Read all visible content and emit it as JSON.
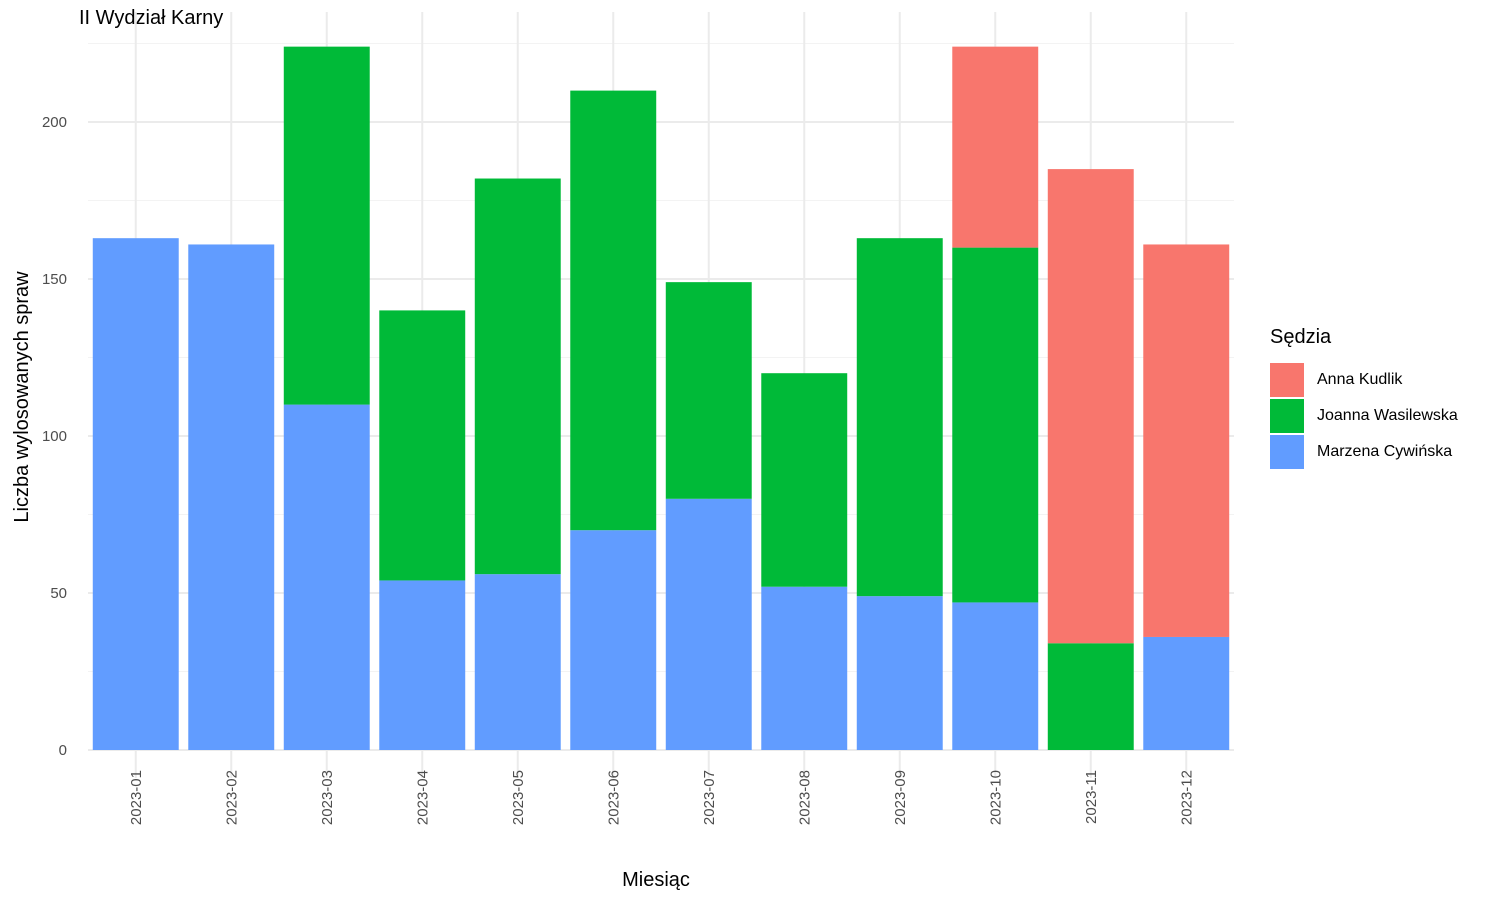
{
  "chart_data": {
    "type": "bar",
    "stacked": true,
    "title": "II Wydział Karny",
    "xlabel": "Miesiąc",
    "ylabel": "Liczba wylosowanych spraw",
    "categories": [
      "2023-01",
      "2023-02",
      "2023-03",
      "2023-04",
      "2023-05",
      "2023-06",
      "2023-07",
      "2023-08",
      "2023-09",
      "2023-10",
      "2023-11",
      "2023-12"
    ],
    "ylim": [
      0,
      225
    ],
    "yticks": [
      0,
      50,
      100,
      150,
      200
    ],
    "grid": true,
    "legend_title": "Sędzia",
    "legend_position": "right",
    "stack_order": [
      "Marzena Cywińska",
      "Joanna Wasilewska",
      "Anna Kudlik"
    ],
    "series": [
      {
        "name": "Anna Kudlik",
        "color": "#F8766D",
        "values": [
          0,
          0,
          0,
          0,
          0,
          0,
          0,
          0,
          0,
          64,
          151,
          125
        ]
      },
      {
        "name": "Joanna Wasilewska",
        "color": "#00BA38",
        "values": [
          0,
          0,
          114,
          86,
          126,
          140,
          69,
          68,
          114,
          113,
          34,
          0
        ]
      },
      {
        "name": "Marzena Cywińska",
        "color": "#619CFF",
        "values": [
          163,
          161,
          110,
          54,
          56,
          70,
          80,
          52,
          49,
          47,
          0,
          36
        ]
      }
    ]
  }
}
